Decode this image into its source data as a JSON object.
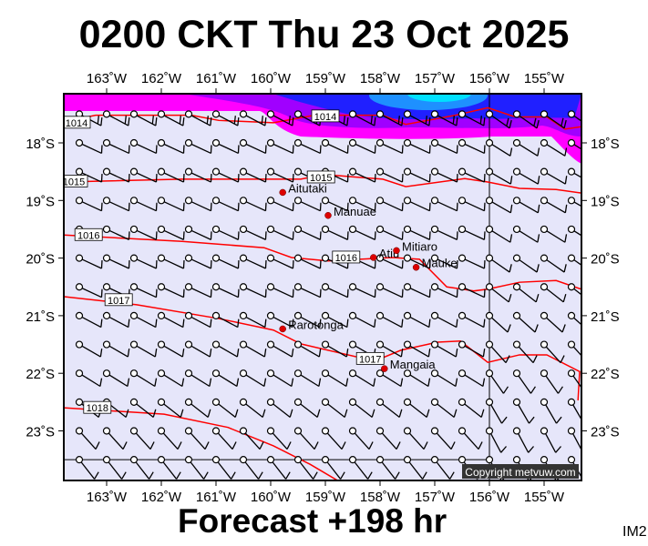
{
  "title": "0200 CKT Thu 23 Oct 2025",
  "footer": "Forecast +198 hr",
  "corner_label": "IM2",
  "copyright": "Copyright metvuw.com",
  "colors": {
    "background": "#e6e6fa",
    "isobar": "#ff0000",
    "island": "#dd0000",
    "magenta": "#ff00ff",
    "purple": "#a000ff",
    "blue": "#2020ff",
    "cyan": "#00e0ff"
  },
  "map": {
    "lon_range": [
      -163.78,
      -154.32
    ],
    "lat_range": [
      -17.25,
      -23.86
    ],
    "lon_ticks": [
      {
        "lon": -163,
        "label": "163˚W"
      },
      {
        "lon": -162,
        "label": "162˚W"
      },
      {
        "lon": -161,
        "label": "161˚W"
      },
      {
        "lon": -160,
        "label": "160˚W"
      },
      {
        "lon": -159,
        "label": "159˚W"
      },
      {
        "lon": -158,
        "label": "158˚W"
      },
      {
        "lon": -157,
        "label": "157˚W"
      },
      {
        "lon": -156,
        "label": "156˚W"
      },
      {
        "lon": -155,
        "label": "155˚W"
      }
    ],
    "lat_ticks": [
      {
        "lat": -18,
        "label": "18˚S"
      },
      {
        "lat": -19,
        "label": "19˚S"
      },
      {
        "lat": -20,
        "label": "20˚S"
      },
      {
        "lat": -21,
        "label": "21˚S"
      },
      {
        "lat": -22,
        "label": "22˚S"
      },
      {
        "lat": -23,
        "label": "23˚S"
      }
    ],
    "islands": [
      {
        "name": "Aitutaki",
        "lon": -159.78,
        "lat": -18.86
      },
      {
        "name": "Manuae",
        "lon": -158.95,
        "lat": -19.26
      },
      {
        "name": "Atiu",
        "lon": -158.12,
        "lat": -19.99
      },
      {
        "name": "Mitiaro",
        "lon": -157.7,
        "lat": -19.87
      },
      {
        "name": "Mauke",
        "lon": -157.34,
        "lat": -20.16
      },
      {
        "name": "Rarotonga",
        "lon": -159.78,
        "lat": -21.23
      },
      {
        "name": "Mangaia",
        "lon": -157.92,
        "lat": -21.92
      }
    ],
    "isobars": [
      {
        "value": "1014",
        "labels": [
          [
            -163.55,
            -17.65
          ],
          [
            -159.0,
            -17.54
          ]
        ],
        "points": [
          [
            -163.78,
            -17.63
          ],
          [
            -163.2,
            -17.52
          ],
          [
            -161.45,
            -17.52
          ],
          [
            -160.95,
            -17.61
          ],
          [
            -159.95,
            -17.65
          ],
          [
            -159.2,
            -17.52
          ],
          [
            -157.95,
            -17.52
          ],
          [
            -157.53,
            -17.68
          ],
          [
            -156.62,
            -17.52
          ],
          [
            -156.03,
            -17.39
          ],
          [
            -155.53,
            -17.55
          ],
          [
            -154.95,
            -17.55
          ],
          [
            -154.62,
            -17.76
          ],
          [
            -154.32,
            -17.72
          ]
        ]
      },
      {
        "value": "1015",
        "labels": [
          [
            -163.6,
            -18.67
          ],
          [
            -159.08,
            -18.6
          ]
        ],
        "points": [
          [
            -163.78,
            -18.68
          ],
          [
            -161.62,
            -18.63
          ],
          [
            -159.45,
            -18.63
          ],
          [
            -159.03,
            -18.55
          ],
          [
            -157.95,
            -18.63
          ],
          [
            -157.53,
            -18.76
          ],
          [
            -156.45,
            -18.62
          ],
          [
            -156.03,
            -18.68
          ],
          [
            -155.45,
            -18.79
          ],
          [
            -154.78,
            -18.81
          ],
          [
            -154.32,
            -18.87
          ]
        ]
      },
      {
        "value": "1016",
        "labels": [
          [
            -163.33,
            -19.6
          ],
          [
            -158.62,
            -19.99
          ]
        ],
        "points": [
          [
            -163.78,
            -19.6
          ],
          [
            -161.62,
            -19.71
          ],
          [
            -160.12,
            -19.82
          ],
          [
            -159.62,
            -19.99
          ],
          [
            -158.95,
            -20.05
          ],
          [
            -157.78,
            -19.99
          ],
          [
            -157.28,
            -20.02
          ],
          [
            -156.78,
            -20.5
          ],
          [
            -156.28,
            -20.57
          ],
          [
            -156.03,
            -20.54
          ],
          [
            -155.45,
            -20.42
          ],
          [
            -154.78,
            -20.39
          ],
          [
            -154.32,
            -20.54
          ]
        ]
      },
      {
        "value": "1017",
        "labels": [
          [
            -162.78,
            -20.73
          ],
          [
            -158.18,
            -21.75
          ]
        ],
        "points": [
          [
            -163.78,
            -20.67
          ],
          [
            -162.45,
            -20.81
          ],
          [
            -160.95,
            -21.05
          ],
          [
            -159.95,
            -21.25
          ],
          [
            -159.45,
            -21.49
          ],
          [
            -158.45,
            -21.71
          ],
          [
            -157.95,
            -21.73
          ],
          [
            -157.62,
            -21.6
          ],
          [
            -156.95,
            -21.46
          ],
          [
            -156.53,
            -21.44
          ],
          [
            -156.03,
            -21.81
          ],
          [
            -155.45,
            -21.68
          ],
          [
            -154.95,
            -21.68
          ],
          [
            -154.35,
            -21.97
          ],
          [
            -154.38,
            -22.47
          ]
        ]
      },
      {
        "value": "1018",
        "labels": [
          [
            -163.17,
            -22.6
          ]
        ],
        "points": [
          [
            -163.78,
            -22.6
          ],
          [
            -161.95,
            -22.71
          ],
          [
            -160.78,
            -22.94
          ],
          [
            -159.95,
            -23.26
          ],
          [
            -159.28,
            -23.58
          ],
          [
            -158.78,
            -23.86
          ]
        ]
      }
    ],
    "wind": {
      "lon_start": -163.5,
      "lon_step": 0.5,
      "cols": 19,
      "lat_start": -17.5,
      "lat_step": -0.5,
      "rows": 13,
      "direction_by_row": [
        28,
        25,
        25,
        25,
        25,
        25,
        25,
        28,
        30,
        32,
        38,
        48,
        52
      ],
      "east_direction_by_row": [
        35,
        32,
        30,
        30,
        32,
        35,
        38,
        42,
        48,
        55,
        60,
        62,
        60
      ],
      "feathers_by_row": [
        2,
        1,
        1,
        1,
        1,
        1,
        1,
        1,
        1,
        1,
        1,
        1,
        1
      ]
    }
  }
}
